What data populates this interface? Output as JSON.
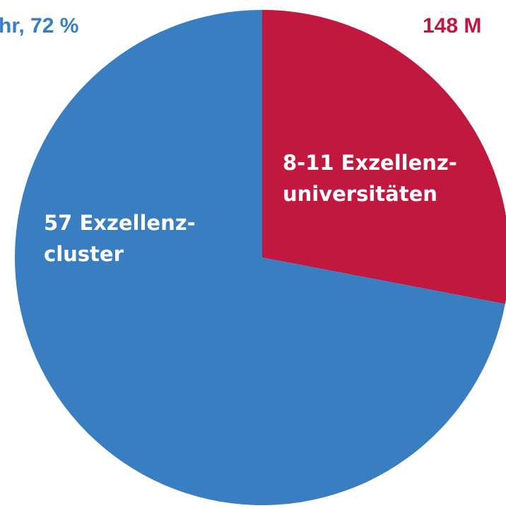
{
  "chart_data": {
    "type": "pie",
    "categories": [
      [
        "8-11 Exzellenz-",
        "universitäten"
      ],
      [
        "57 Exzellenz-",
        "cluster"
      ]
    ],
    "values": [
      28,
      72
    ],
    "colors": [
      "#c0183f",
      "#3a7ec2"
    ],
    "annotations": [
      {
        "text": "hr, 72 %",
        "color": "#3a7ec2"
      },
      {
        "text": "148 M",
        "color": "#c0183f"
      }
    ]
  }
}
